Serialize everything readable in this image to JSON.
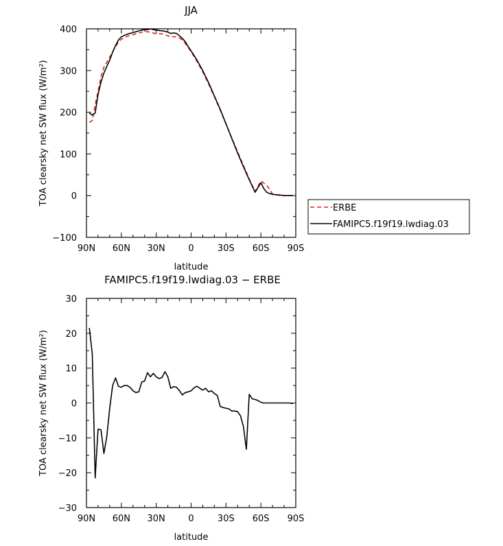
{
  "chart_data": [
    {
      "type": "line",
      "title": "JJA",
      "xlabel": "latitude",
      "ylabel": "TOA clearsky net SW flux (W/m²)",
      "xlim": [
        90,
        -90
      ],
      "ylim": [
        -100,
        400
      ],
      "x_ticks": [
        90,
        60,
        30,
        0,
        -30,
        -60,
        -90
      ],
      "x_tick_labels": [
        "90N",
        "60N",
        "30N",
        "0",
        "30S",
        "60S",
        "90S"
      ],
      "y_ticks": [
        -100,
        0,
        100,
        200,
        300,
        400
      ],
      "y_tick_labels": [
        "−100",
        "0",
        "100",
        "200",
        "300",
        "400"
      ],
      "legend_position": "outside-right",
      "series": [
        {
          "name": "ERBE",
          "color": "#e0201b",
          "dash": "dashed",
          "x": [
            87.5,
            85,
            82.5,
            80,
            77.5,
            75,
            72.5,
            70,
            67.5,
            65,
            62.5,
            60,
            57.5,
            55,
            52.5,
            50,
            47.5,
            45,
            42.5,
            40,
            37.5,
            35,
            32.5,
            30,
            27.5,
            25,
            22.5,
            20,
            17.5,
            15,
            12.5,
            10,
            7.5,
            5,
            2.5,
            0,
            -5,
            -10,
            -15,
            -20,
            -25,
            -30,
            -35,
            -40,
            -45,
            -50,
            -55,
            -60,
            -62.5,
            -65,
            -67.5,
            -70,
            -75,
            -80,
            -85,
            -87.5
          ],
          "y": [
            176,
            180,
            218,
            250,
            285,
            308,
            320,
            332,
            345,
            357,
            368,
            375,
            379,
            382,
            384,
            386,
            388,
            390,
            392,
            393,
            393,
            392,
            390,
            388,
            388,
            388,
            386,
            383,
            381,
            381,
            381,
            378,
            373,
            365,
            355,
            345,
            322,
            297,
            268,
            237,
            205,
            172,
            138,
            105,
            72,
            40,
            10,
            35,
            30,
            25,
            15,
            4,
            1,
            0,
            0,
            0
          ]
        },
        {
          "name": "FAMIPC5.f19f19.lwdiag.03",
          "color": "#000000",
          "dash": "solid",
          "x": [
            87.5,
            85,
            82.5,
            80,
            77.5,
            75,
            72.5,
            70,
            67.5,
            65,
            62.5,
            60,
            57.5,
            55,
            52.5,
            50,
            47.5,
            45,
            42.5,
            40,
            37.5,
            35,
            32.5,
            30,
            27.5,
            25,
            22.5,
            20,
            17.5,
            15,
            12.5,
            10,
            7.5,
            5,
            2.5,
            0,
            -5,
            -10,
            -15,
            -20,
            -25,
            -30,
            -35,
            -40,
            -45,
            -50,
            -55,
            -60,
            -62.5,
            -65,
            -67.5,
            -70,
            -75,
            -80,
            -85,
            -87.5
          ],
          "y": [
            198,
            193,
            198,
            243,
            272,
            294,
            310,
            325,
            344,
            360,
            373,
            381,
            384,
            387,
            389,
            391,
            393,
            395,
            397,
            398,
            398,
            400,
            398,
            397,
            396,
            395,
            394,
            392,
            389,
            390,
            389,
            383,
            377,
            369,
            357,
            347,
            325,
            300,
            271,
            239,
            207,
            172,
            137,
            102,
            69,
            38,
            8,
            31,
            17,
            8,
            5,
            3,
            2,
            0,
            0,
            0
          ]
        }
      ]
    },
    {
      "type": "line",
      "title": "FAMIPC5.f19f19.lwdiag.03 − ERBE",
      "xlabel": "latitude",
      "ylabel": "TOA clearsky net SW flux (W/m²)",
      "xlim": [
        90,
        -90
      ],
      "ylim": [
        -30,
        30
      ],
      "x_ticks": [
        90,
        60,
        30,
        0,
        -30,
        -60,
        -90
      ],
      "x_tick_labels": [
        "90N",
        "60N",
        "30N",
        "0",
        "30S",
        "60S",
        "90S"
      ],
      "y_ticks": [
        -30,
        -20,
        -10,
        0,
        10,
        20,
        30
      ],
      "y_tick_labels": [
        "−30",
        "−20",
        "−10",
        "0",
        "10",
        "20",
        "30"
      ],
      "series": [
        {
          "color": "#000000",
          "dash": "solid",
          "x": [
            87.5,
            85,
            82.5,
            80,
            77.5,
            75,
            72.5,
            70,
            67.5,
            65,
            62.5,
            60,
            57.5,
            55,
            52.5,
            50,
            47.5,
            45,
            42.5,
            40,
            37.5,
            35,
            32.5,
            30,
            27.5,
            25,
            22.5,
            20,
            17.5,
            15,
            12.5,
            10,
            7.5,
            5,
            2.5,
            0,
            -2.5,
            -5,
            -7.5,
            -10,
            -12.5,
            -15,
            -17.5,
            -20,
            -22.5,
            -25,
            -27.5,
            -30,
            -32.5,
            -35,
            -37.5,
            -40,
            -42.5,
            -45,
            -47.5,
            -50,
            -52.5,
            -55,
            -57.5,
            -60,
            -62.5,
            -65,
            -67.5,
            -70,
            -72.5,
            -75,
            -77.5,
            -80,
            -82.5,
            -85,
            -87.5
          ],
          "y": [
            21.5,
            14,
            -21.5,
            -7.5,
            -7.7,
            -14.5,
            -9.5,
            -1.5,
            5,
            7.2,
            4.8,
            4.5,
            5,
            5,
            4.5,
            3.5,
            3,
            3.2,
            6,
            6.3,
            8.7,
            7.5,
            8.5,
            7.5,
            7,
            7.3,
            9,
            7.5,
            4.2,
            4.7,
            4.5,
            3.5,
            2.3,
            3,
            3.2,
            3.5,
            4.3,
            4.8,
            4.2,
            3.7,
            4.2,
            3.2,
            3.5,
            2.7,
            2.2,
            -1,
            -1.3,
            -1.5,
            -1.7,
            -2.3,
            -2.3,
            -2.5,
            -3.7,
            -6.8,
            -13.3,
            2.5,
            1.2,
            1,
            0.7,
            0.2,
            0,
            0,
            0,
            0,
            0,
            0,
            0,
            0,
            0,
            0,
            -0.2
          ]
        }
      ]
    }
  ]
}
